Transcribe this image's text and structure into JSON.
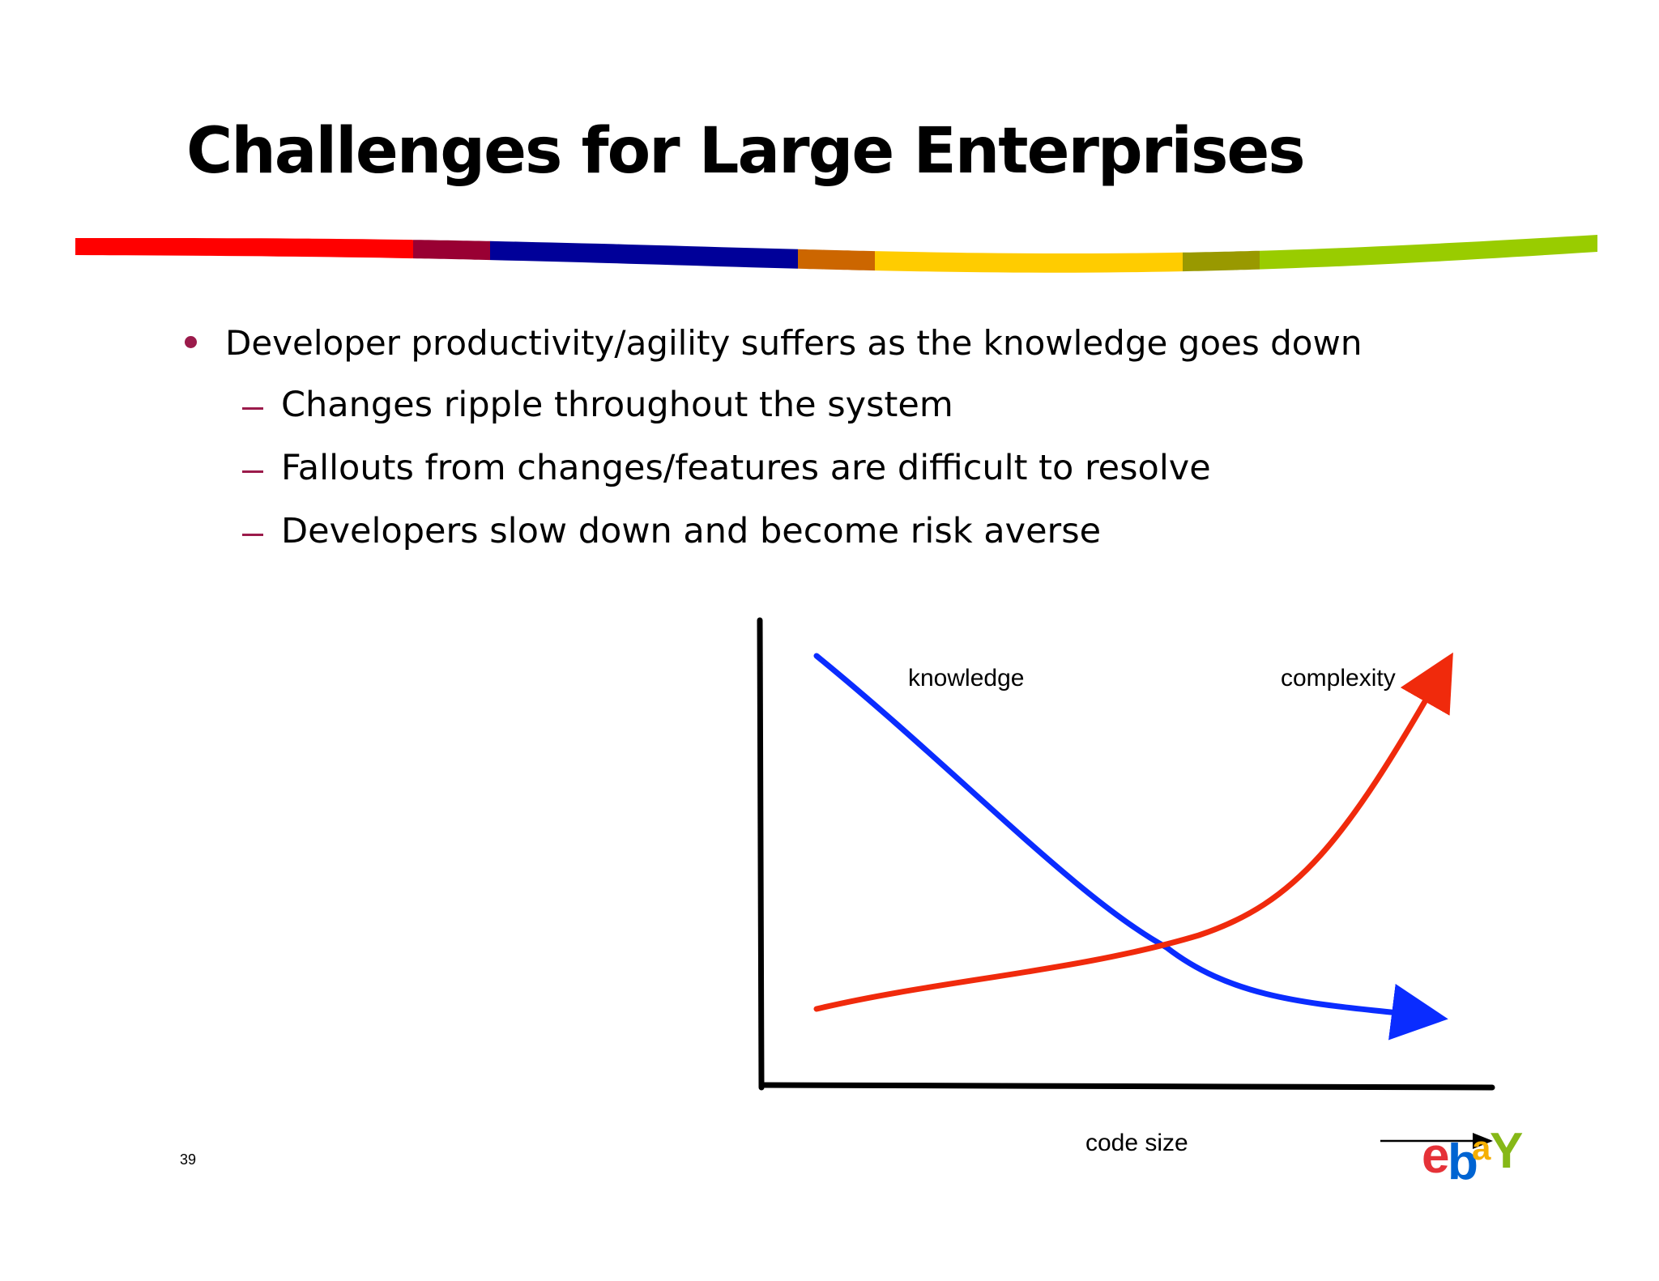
{
  "slide": {
    "title": "Challenges for Large Enterprises",
    "bullets": [
      {
        "text": "Developer productivity/agility suffers as the knowledge goes down",
        "sub_items": [
          "Changes ripple throughout the system",
          "Fallouts from changes/features are difficult to resolve",
          "Developers slow down and become risk averse"
        ]
      }
    ],
    "page_number": "39"
  },
  "diagram": {
    "curve_labels": {
      "knowledge": "knowledge",
      "complexity": "complexity"
    },
    "x_axis_label": "code size",
    "colors": {
      "knowledge": "#0a2cff",
      "complexity": "#f02a0c",
      "axis": "#000000"
    }
  },
  "stripe_colors": [
    "#ff0000",
    "#990033",
    "#000099",
    "#cc6600",
    "#ffcc00",
    "#999900",
    "#99cc00"
  ],
  "logo": {
    "letters": [
      "e",
      "b",
      "a",
      "Y"
    ],
    "colors": [
      "#e53238",
      "#0064d2",
      "#f5af02",
      "#86b817"
    ]
  }
}
